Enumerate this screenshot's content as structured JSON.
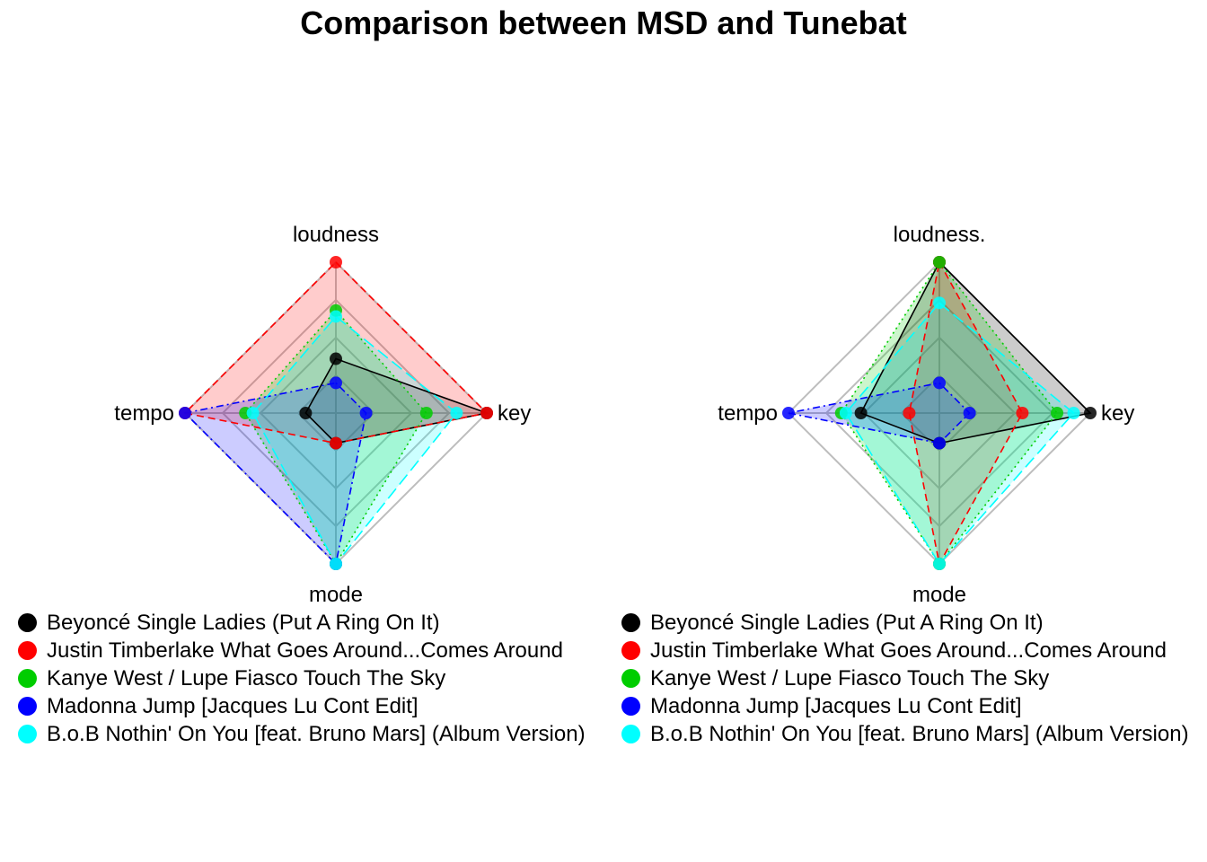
{
  "chart_title": "Comparison between MSD and Tunebat",
  "chart_data": [
    {
      "type": "radar",
      "axes": [
        "loudness",
        "key",
        "mode",
        "tempo"
      ],
      "range": [
        0,
        1
      ],
      "grid_levels": 4,
      "legend_position": "bottom",
      "series": [
        {
          "name": "Beyoncé Single Ladies (Put A Ring On It)",
          "color": "#000000",
          "fill": "#000000",
          "dash": "solid",
          "values": [
            0.36,
            1.0,
            0.2,
            0.2
          ]
        },
        {
          "name": "Justin Timberlake What Goes Around...Comes Around",
          "color": "#ff0000",
          "fill": "#ff0000",
          "dash": "dashed",
          "values": [
            1.0,
            1.0,
            0.2,
            1.0
          ]
        },
        {
          "name": "Kanye West / Lupe Fiasco Touch The Sky",
          "color": "#00cd00",
          "fill": "#00cd00",
          "dash": "dotted",
          "values": [
            0.68,
            0.6,
            1.0,
            0.6
          ]
        },
        {
          "name": "Madonna Jump [Jacques Lu Cont Edit]",
          "color": "#0000ff",
          "fill": "#0000ff",
          "dash": "dotdash",
          "values": [
            0.2,
            0.2,
            1.0,
            1.0
          ]
        },
        {
          "name": "B.o.B Nothin' On You [feat. Bruno Mars] (Album Version)",
          "color": "#00ffff",
          "fill": "#00ffff",
          "dash": "longdash",
          "values": [
            0.64,
            0.8,
            1.0,
            0.55
          ]
        }
      ]
    },
    {
      "type": "radar",
      "axes": [
        "loudness.",
        "key",
        "mode",
        "tempo"
      ],
      "range": [
        0,
        1
      ],
      "grid_levels": 4,
      "legend_position": "bottom",
      "series": [
        {
          "name": "Beyoncé Single Ladies (Put A Ring On It)",
          "color": "#000000",
          "fill": "#000000",
          "dash": "solid",
          "values": [
            1.0,
            1.0,
            0.2,
            0.52
          ]
        },
        {
          "name": "Justin Timberlake What Goes Around...Comes Around",
          "color": "#ff0000",
          "fill": "#ff0000",
          "dash": "dashed",
          "values": [
            1.0,
            0.55,
            1.0,
            0.2
          ]
        },
        {
          "name": "Kanye West / Lupe Fiasco Touch The Sky",
          "color": "#00cd00",
          "fill": "#00cd00",
          "dash": "dotted",
          "values": [
            1.0,
            0.78,
            1.0,
            0.65
          ]
        },
        {
          "name": "Madonna Jump [Jacques Lu Cont Edit]",
          "color": "#0000ff",
          "fill": "#0000ff",
          "dash": "dotdash",
          "values": [
            0.2,
            0.2,
            0.2,
            1.0
          ]
        },
        {
          "name": "B.o.B Nothin' On You [feat. Bruno Mars] (Album Version)",
          "color": "#00ffff",
          "fill": "#00ffff",
          "dash": "longdash",
          "values": [
            0.73,
            0.89,
            1.0,
            0.62
          ]
        }
      ]
    }
  ]
}
